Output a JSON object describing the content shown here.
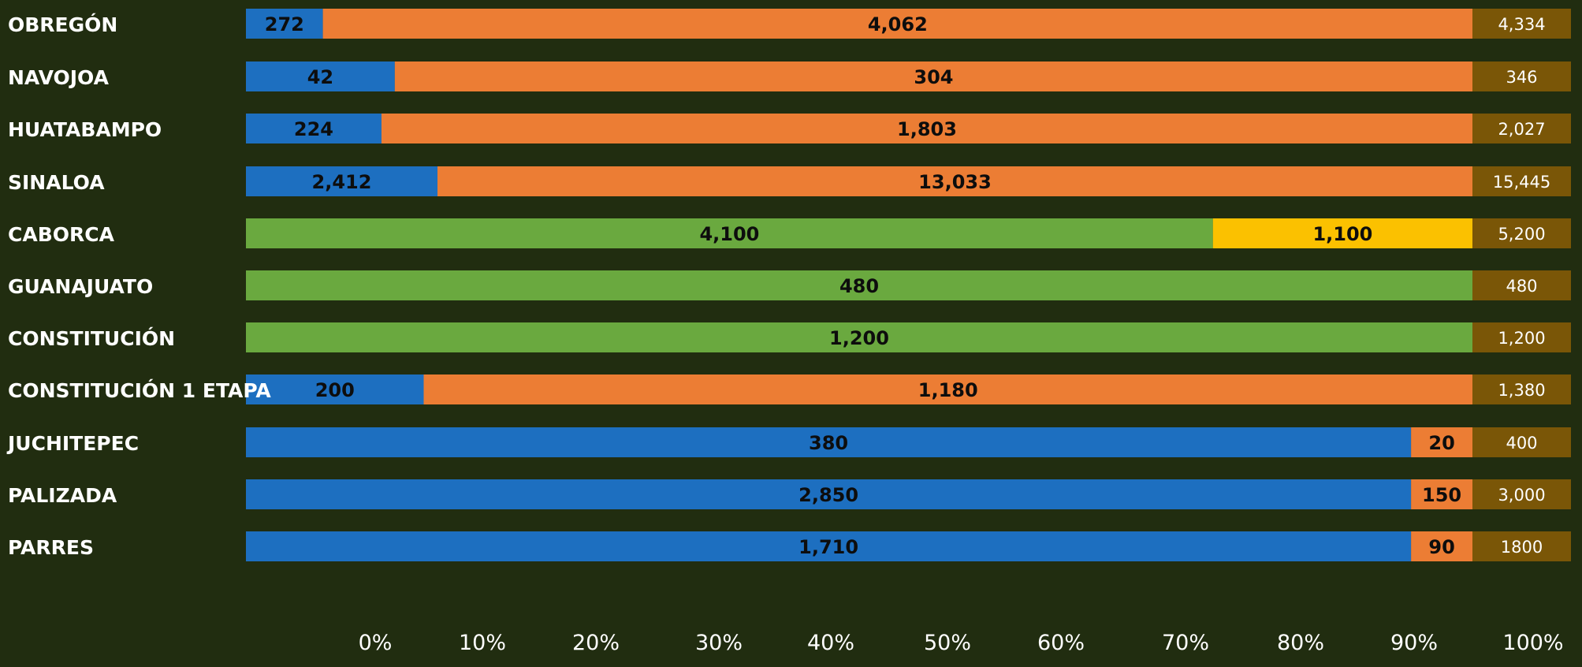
{
  "chart_data": {
    "type": "bar",
    "orientation": "horizontal",
    "stacked": true,
    "normalized": true,
    "title": "",
    "xlabel": "",
    "ylabel": "",
    "xlim": [
      0,
      100
    ],
    "x_ticks": [
      "0%",
      "10%",
      "20%",
      "30%",
      "40%",
      "50%",
      "60%",
      "70%",
      "80%",
      "90%",
      "100%"
    ],
    "grid": false,
    "legend": "none",
    "categories": [
      "OBREGÓN",
      "NAVOJOA",
      "HUATABAMPO",
      "SINALOA",
      "CABORCA",
      "GUANAJUATO",
      "CONSTITUCIÓN",
      "CONSTITUCIÓN 1 ETAPA",
      "JUCHITEPEC",
      "PALIZADA",
      "PARRES"
    ],
    "rows": [
      {
        "segments": [
          {
            "value": 272,
            "label": "272",
            "color": "#1d6fc0"
          },
          {
            "value": 4062,
            "label": "4,062",
            "color": "#ec7d34"
          }
        ],
        "total_label": "4,334"
      },
      {
        "segments": [
          {
            "value": 42,
            "label": "42",
            "color": "#1d6fc0"
          },
          {
            "value": 304,
            "label": "304",
            "color": "#ec7d34"
          }
        ],
        "total_label": "346"
      },
      {
        "segments": [
          {
            "value": 224,
            "label": "224",
            "color": "#1d6fc0"
          },
          {
            "value": 1803,
            "label": "1,803",
            "color": "#ec7d34"
          }
        ],
        "total_label": "2,027"
      },
      {
        "segments": [
          {
            "value": 2412,
            "label": "2,412",
            "color": "#1d6fc0"
          },
          {
            "value": 13033,
            "label": "13,033",
            "color": "#ec7d34"
          }
        ],
        "total_label": "15,445"
      },
      {
        "segments": [
          {
            "value": 4100,
            "label": "4,100",
            "color": "#6aa93f"
          },
          {
            "value": 1100,
            "label": "1,100",
            "color": "#fbc100"
          }
        ],
        "total_label": "5,200"
      },
      {
        "segments": [
          {
            "value": 480,
            "label": "480",
            "color": "#6aa93f"
          }
        ],
        "total_label": "480"
      },
      {
        "segments": [
          {
            "value": 1200,
            "label": "1,200",
            "color": "#6aa93f"
          }
        ],
        "total_label": "1,200"
      },
      {
        "segments": [
          {
            "value": 200,
            "label": "200",
            "color": "#1d6fc0"
          },
          {
            "value": 1180,
            "label": "1,180",
            "color": "#ec7d34"
          }
        ],
        "total_label": "1,380"
      },
      {
        "segments": [
          {
            "value": 380,
            "label": "380",
            "color": "#1d6fc0"
          },
          {
            "value": 20,
            "label": "20",
            "color": "#ec7d34"
          }
        ],
        "total_label": "400"
      },
      {
        "segments": [
          {
            "value": 2850,
            "label": "2,850",
            "color": "#1d6fc0"
          },
          {
            "value": 150,
            "label": "150",
            "color": "#ec7d34"
          }
        ],
        "total_label": "3,000"
      },
      {
        "segments": [
          {
            "value": 1710,
            "label": "1,710",
            "color": "#1d6fc0"
          },
          {
            "value": 90,
            "label": "90",
            "color": "#ec7d34"
          }
        ],
        "total_label": "1800"
      }
    ],
    "colors": {
      "background": "#212d10",
      "blue": "#1d6fc0",
      "orange": "#ec7d34",
      "green": "#6aa93f",
      "yellow": "#fbc100",
      "total_box": "#7a5607",
      "category_text": "#ffffff",
      "tick_text": "#ffffff",
      "segment_text": "#0d0d0d",
      "total_text": "#ffffff"
    }
  }
}
